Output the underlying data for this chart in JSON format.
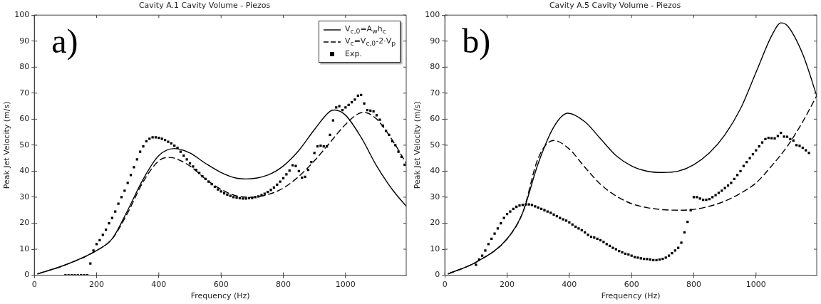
{
  "chart_data": [
    {
      "type": "line",
      "title": "Cavity A.1 Cavity Volume - Piezos",
      "xlabel": "Frequency (Hz)",
      "ylabel": "Peak Jet Velocity (m/s)",
      "annotations": [
        "a)"
      ],
      "xlim": [
        0,
        1195
      ],
      "xticks": [
        0,
        200,
        400,
        600,
        800,
        1000
      ],
      "ylim": [
        0,
        100
      ],
      "yticks": [
        0,
        10,
        20,
        30,
        40,
        50,
        60,
        70,
        80,
        90,
        100
      ],
      "legend": "top right",
      "series": [
        {
          "name": "V$_{c,0}$=A$_{w}$h$_{c}$",
          "color": "#000000",
          "line_style": "solid",
          "marker": "none",
          "x": [
            10,
            100,
            200,
            250,
            300,
            350,
            400,
            450,
            500,
            550,
            600,
            650,
            680,
            750,
            800,
            850,
            900,
            950,
            965,
            1000,
            1050,
            1100,
            1150,
            1195
          ],
          "values": [
            0.5,
            4,
            9.5,
            14,
            25,
            37,
            46,
            48.7,
            47,
            43,
            39.5,
            37.3,
            37,
            38.5,
            42,
            48,
            56,
            63,
            63.5,
            61.5,
            53,
            42,
            33,
            26.5
          ]
        },
        {
          "name": "V$_{c}$=V$_{c,0}$-2·V$_{p}$",
          "color": "#000000",
          "line_style": "dashed",
          "marker": "none",
          "x": [
            10,
            100,
            200,
            250,
            300,
            350,
            400,
            430,
            450,
            500,
            550,
            600,
            650,
            700,
            750,
            800,
            850,
            900,
            950,
            1000,
            1050,
            1060,
            1100,
            1150,
            1195
          ],
          "values": [
            0.5,
            4,
            9.5,
            14,
            24,
            36,
            44,
            45.3,
            45,
            42,
            37,
            33,
            30.5,
            30,
            31,
            33.5,
            38,
            44,
            51,
            58,
            62.5,
            62.6,
            60,
            52,
            43
          ]
        },
        {
          "type": "scatter",
          "name": "Exp.",
          "color": "#000000",
          "marker": "square",
          "x": [
            100,
            110,
            120,
            130,
            140,
            150,
            160,
            170,
            180,
            190,
            200,
            210,
            220,
            230,
            240,
            250,
            260,
            270,
            280,
            290,
            300,
            310,
            320,
            330,
            340,
            350,
            360,
            370,
            380,
            390,
            400,
            410,
            420,
            430,
            440,
            450,
            460,
            470,
            480,
            490,
            500,
            510,
            520,
            530,
            540,
            550,
            560,
            570,
            580,
            590,
            600,
            610,
            620,
            630,
            640,
            650,
            660,
            670,
            680,
            690,
            700,
            710,
            720,
            730,
            740,
            750,
            760,
            770,
            780,
            790,
            800,
            810,
            820,
            830,
            840,
            850,
            860,
            870,
            880,
            890,
            900,
            910,
            920,
            930,
            940,
            950,
            960,
            970,
            980,
            990,
            1000,
            1010,
            1020,
            1030,
            1040,
            1050,
            1060,
            1070,
            1080,
            1090,
            1100,
            1110,
            1120,
            1130,
            1140,
            1150,
            1160,
            1170,
            1180,
            1190
          ],
          "values": [
            0,
            0,
            0,
            0,
            0,
            0,
            0,
            0,
            4.5,
            9.5,
            12,
            13.5,
            15.5,
            17.5,
            20,
            22,
            24.5,
            27.5,
            30,
            32.5,
            35.5,
            38.5,
            41.5,
            44.5,
            47.5,
            49.5,
            51.5,
            52.5,
            53,
            53,
            52.8,
            52.5,
            52,
            51.3,
            50.7,
            49.8,
            49,
            47.5,
            46,
            44.5,
            43,
            41.8,
            40.5,
            39.3,
            38,
            37,
            36,
            35,
            34,
            33,
            32.2,
            31.5,
            31,
            30.5,
            30,
            29.8,
            29.6,
            29.5,
            29.5,
            29.6,
            29.7,
            30,
            30.3,
            30.8,
            31.3,
            32,
            32.8,
            33.7,
            34.8,
            36,
            37.3,
            38.8,
            40.2,
            42.3,
            42,
            40,
            37.5,
            37.8,
            40.5,
            43.5,
            47,
            49.5,
            49.8,
            49.5,
            49.5,
            54,
            59.5,
            64.5,
            65,
            63.5,
            64.5,
            65.5,
            66.5,
            67.5,
            69,
            69.3,
            66,
            63.5,
            63.3,
            63,
            61.5,
            59.8,
            57.5,
            55.5,
            54,
            51.5,
            50,
            47.5,
            45.5,
            42.5
          ]
        }
      ]
    },
    {
      "type": "line",
      "title": "Cavity A.5 Cavity Volume - Piezos",
      "xlabel": "Frequency (Hz)",
      "ylabel": "Peak Jet Velocity (m/s)",
      "annotations": [
        "b)"
      ],
      "xlim": [
        0,
        1195
      ],
      "xticks": [
        0,
        200,
        400,
        600,
        800,
        1000
      ],
      "ylim": [
        0,
        100
      ],
      "yticks": [
        0,
        10,
        20,
        30,
        40,
        50,
        60,
        70,
        80,
        90,
        100
      ],
      "series": [
        {
          "color": "#000000",
          "line_style": "solid",
          "marker": "none",
          "x": [
            10,
            100,
            200,
            250,
            300,
            350,
            395,
            450,
            500,
            550,
            600,
            650,
            700,
            750,
            800,
            850,
            900,
            950,
            1000,
            1050,
            1080,
            1100,
            1150,
            1195
          ],
          "values": [
            0.5,
            5,
            14,
            24,
            43,
            57,
            62.3,
            59,
            52.5,
            46,
            42,
            40,
            39.5,
            40,
            42.5,
            47,
            54,
            64,
            78,
            92,
            97,
            96,
            85,
            69
          ]
        },
        {
          "color": "#000000",
          "line_style": "dashed",
          "marker": "none",
          "x": [
            10,
            100,
            200,
            250,
            300,
            350,
            400,
            450,
            500,
            550,
            600,
            650,
            700,
            760,
            800,
            850,
            900,
            950,
            1000,
            1050,
            1100,
            1150,
            1195
          ],
          "values": [
            0.5,
            5,
            14,
            24,
            45,
            51.8,
            48.5,
            41.5,
            35,
            30.5,
            27.5,
            26,
            25.2,
            25,
            25.3,
            26.5,
            28.5,
            31.5,
            35.5,
            42,
            49.5,
            59,
            69
          ]
        },
        {
          "type": "scatter",
          "color": "#000000",
          "marker": "square",
          "x": [
            100,
            110,
            120,
            130,
            140,
            150,
            160,
            170,
            180,
            190,
            200,
            210,
            220,
            230,
            240,
            250,
            260,
            270,
            280,
            290,
            300,
            310,
            320,
            330,
            340,
            350,
            360,
            370,
            380,
            390,
            400,
            410,
            420,
            430,
            440,
            450,
            460,
            470,
            480,
            490,
            500,
            510,
            520,
            530,
            540,
            550,
            560,
            570,
            580,
            590,
            600,
            610,
            620,
            630,
            640,
            650,
            660,
            670,
            680,
            690,
            700,
            710,
            720,
            730,
            740,
            750,
            760,
            770,
            780,
            790,
            800,
            810,
            820,
            830,
            840,
            850,
            860,
            870,
            880,
            890,
            900,
            910,
            920,
            930,
            940,
            950,
            960,
            970,
            980,
            990,
            1000,
            1010,
            1020,
            1030,
            1040,
            1050,
            1060,
            1070,
            1080,
            1090,
            1100,
            1110,
            1120,
            1130,
            1140,
            1150,
            1160,
            1170
          ],
          "values": [
            4,
            6,
            7.5,
            9.5,
            12,
            14,
            16,
            18,
            20,
            22,
            23.5,
            24.5,
            25.5,
            26.3,
            26.8,
            27,
            27.2,
            27.2,
            27,
            26.5,
            26,
            25.5,
            25,
            24.5,
            24,
            23.3,
            22.7,
            22,
            21.5,
            21,
            20.3,
            19.5,
            18.7,
            18,
            17.3,
            16.5,
            15.5,
            14.8,
            14.5,
            14,
            13.5,
            12.8,
            12,
            11.3,
            10.5,
            10,
            9.3,
            8.8,
            8.3,
            8,
            7.5,
            7,
            6.8,
            6.5,
            6.3,
            6.2,
            6,
            5.8,
            5.8,
            6,
            6.3,
            6.8,
            7.5,
            8.5,
            9.5,
            10.5,
            12.5,
            16.5,
            20.5,
            25,
            30,
            30,
            29.5,
            29,
            29,
            29.3,
            30,
            30.8,
            31.7,
            32.5,
            33.5,
            34.5,
            35.5,
            37,
            38.5,
            40,
            42,
            43.5,
            45,
            46.5,
            48,
            49.5,
            51,
            52.3,
            52.8,
            52.7,
            52.6,
            53.5,
            54.7,
            53.3,
            53.2,
            52.3,
            51.8,
            50,
            49.7,
            49,
            48,
            47
          ]
        }
      ]
    }
  ]
}
